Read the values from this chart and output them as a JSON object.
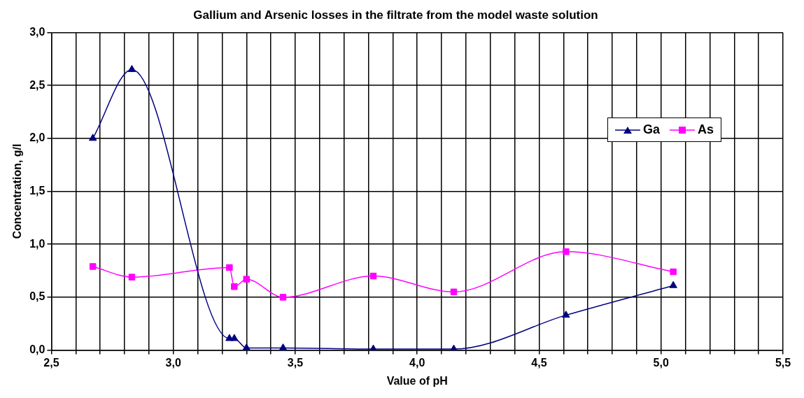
{
  "chart_data": {
    "type": "line",
    "title": "Gallium and Arsenic losses in the filtrate from the model waste solution",
    "xlabel": "Value of pH",
    "ylabel": "Concentration, g/l",
    "x": [
      2.67,
      2.83,
      3.23,
      3.25,
      3.3,
      3.45,
      3.82,
      4.15,
      4.61,
      5.05
    ],
    "series": [
      {
        "name": "Ga",
        "color": "#000080",
        "marker": "triangle",
        "values": [
          2.0,
          2.65,
          0.11,
          0.11,
          0.02,
          0.02,
          0.01,
          0.01,
          0.33,
          0.61
        ]
      },
      {
        "name": "As",
        "color": "#ff00ff",
        "marker": "square",
        "values": [
          0.79,
          0.69,
          0.78,
          0.6,
          0.67,
          0.5,
          0.7,
          0.55,
          0.93,
          0.74
        ]
      }
    ],
    "xlim": [
      2.5,
      5.5
    ],
    "xticks": [
      {
        "value": 2.5,
        "label": "2,5"
      },
      {
        "value": 2.6,
        "label": null
      },
      {
        "value": 2.7,
        "label": null
      },
      {
        "value": 2.8,
        "label": null
      },
      {
        "value": 2.9,
        "label": null
      },
      {
        "value": 3.0,
        "label": "3,0"
      },
      {
        "value": 3.1,
        "label": null
      },
      {
        "value": 3.2,
        "label": null
      },
      {
        "value": 3.3,
        "label": null
      },
      {
        "value": 3.4,
        "label": null
      },
      {
        "value": 3.5,
        "label": "3,5"
      },
      {
        "value": 3.6,
        "label": null
      },
      {
        "value": 3.7,
        "label": null
      },
      {
        "value": 3.8,
        "label": null
      },
      {
        "value": 3.9,
        "label": null
      },
      {
        "value": 4.0,
        "label": "4,0"
      },
      {
        "value": 4.1,
        "label": null
      },
      {
        "value": 4.2,
        "label": null
      },
      {
        "value": 4.3,
        "label": null
      },
      {
        "value": 4.4,
        "label": null
      },
      {
        "value": 4.5,
        "label": "4,5"
      },
      {
        "value": 4.6,
        "label": null
      },
      {
        "value": 4.7,
        "label": null
      },
      {
        "value": 4.8,
        "label": null
      },
      {
        "value": 4.9,
        "label": null
      },
      {
        "value": 5.0,
        "label": "5,0"
      },
      {
        "value": 5.1,
        "label": null
      },
      {
        "value": 5.2,
        "label": null
      },
      {
        "value": 5.3,
        "label": null
      },
      {
        "value": 5.4,
        "label": null
      },
      {
        "value": 5.5,
        "label": "5,5"
      }
    ],
    "ylim": [
      0,
      3
    ],
    "yticks": [
      {
        "value": 0,
        "label": "0,0"
      },
      {
        "value": 0.5,
        "label": "0,5"
      },
      {
        "value": 1.0,
        "label": "1,0"
      },
      {
        "value": 1.5,
        "label": "1,5"
      },
      {
        "value": 2.0,
        "label": "2,0"
      },
      {
        "value": 2.5,
        "label": "2,5"
      },
      {
        "value": 3.0,
        "label": "3,0"
      }
    ],
    "grid": true,
    "legend": "top right",
    "line_style": "solid"
  }
}
